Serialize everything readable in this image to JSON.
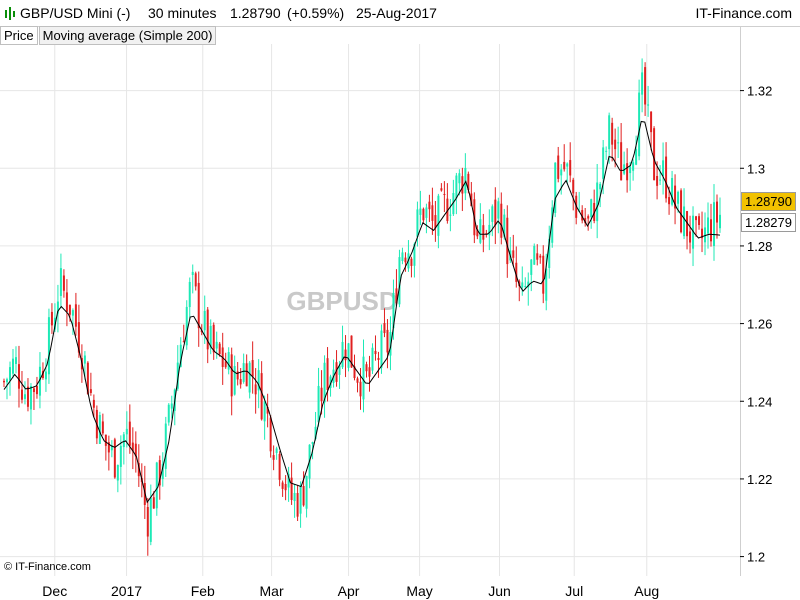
{
  "header": {
    "symbol": "GBP/USD Mini (-)",
    "interval": "30 minutes",
    "last": "1.28790",
    "change": "(+0.59%)",
    "date": "25-Aug-2017",
    "brand": "IT-Finance.com"
  },
  "legend": {
    "price": "Price",
    "ma": "Moving average (Simple 200)"
  },
  "copyright": "© IT-Finance.com",
  "watermark": "GBPUSD",
  "price_badges": {
    "last": "1.28790",
    "ma": "1.28279"
  },
  "colors": {
    "up": "#1de9b6",
    "down": "#e02020",
    "ma_line": "#000000",
    "last_badge": "#f2c200",
    "grid": "#e6e6e6"
  },
  "chart_data": {
    "type": "candlestick",
    "ylim": [
      1.195,
      1.332
    ],
    "y_ticks": [
      "1.32",
      "1.3",
      "1.28",
      "1.26",
      "1.24",
      "1.22",
      "1.2"
    ],
    "x_ticks": [
      "Dec",
      "2017",
      "Feb",
      "Mar",
      "Apr",
      "May",
      "Jun",
      "Jul",
      "Aug"
    ],
    "x_tick_positions": [
      0.074,
      0.171,
      0.274,
      0.367,
      0.471,
      0.567,
      0.675,
      0.776,
      0.874
    ],
    "close_profile": [
      1.245,
      1.25,
      1.242,
      1.245,
      1.255,
      1.27,
      1.265,
      1.255,
      1.24,
      1.23,
      1.225,
      1.232,
      1.225,
      1.21,
      1.22,
      1.235,
      1.255,
      1.27,
      1.26,
      1.252,
      1.25,
      1.245,
      1.25,
      1.245,
      1.235,
      1.225,
      1.215,
      1.215,
      1.23,
      1.245,
      1.25,
      1.255,
      1.248,
      1.245,
      1.252,
      1.255,
      1.28,
      1.28,
      1.29,
      1.285,
      1.29,
      1.295,
      1.3,
      1.28,
      1.285,
      1.29,
      1.275,
      1.265,
      1.275,
      1.27,
      1.3,
      1.3,
      1.29,
      1.285,
      1.295,
      1.31,
      1.3,
      1.305,
      1.32,
      1.3,
      1.298,
      1.29,
      1.285,
      1.28,
      1.285,
      1.288
    ],
    "ma_profile": [
      1.243,
      1.247,
      1.243,
      1.244,
      1.25,
      1.265,
      1.262,
      1.251,
      1.237,
      1.23,
      1.228,
      1.23,
      1.226,
      1.214,
      1.218,
      1.23,
      1.25,
      1.263,
      1.258,
      1.253,
      1.251,
      1.247,
      1.248,
      1.245,
      1.238,
      1.228,
      1.219,
      1.218,
      1.227,
      1.24,
      1.247,
      1.252,
      1.248,
      1.244,
      1.248,
      1.252,
      1.272,
      1.278,
      1.286,
      1.284,
      1.288,
      1.292,
      1.297,
      1.283,
      1.283,
      1.287,
      1.277,
      1.268,
      1.271,
      1.27,
      1.292,
      1.297,
      1.29,
      1.285,
      1.291,
      1.304,
      1.299,
      1.301,
      1.314,
      1.302,
      1.297,
      1.29,
      1.286,
      1.282,
      1.283,
      1.2828
    ]
  }
}
